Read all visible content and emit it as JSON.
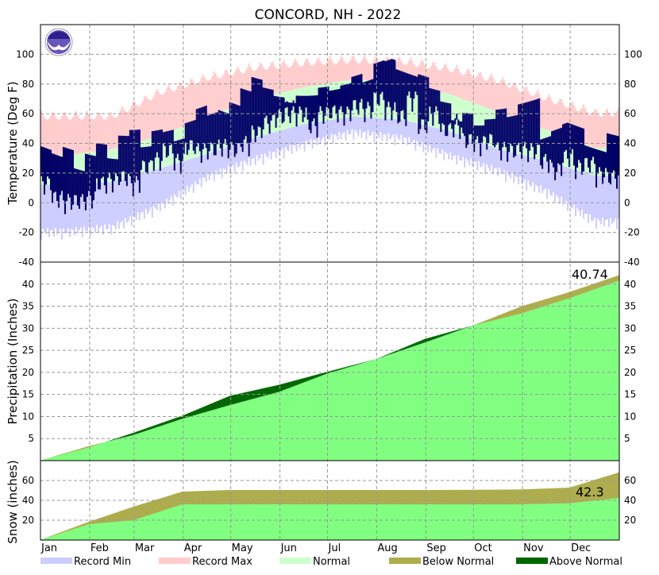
{
  "title": "CONCORD, NH - 2022",
  "months": [
    "Jan",
    "Feb",
    "Mar",
    "Apr",
    "May",
    "Jun",
    "Jul",
    "Aug",
    "Sep",
    "Oct",
    "Nov",
    "Dec"
  ],
  "legend": [
    {
      "label": "Record Min",
      "color": "#ccccff"
    },
    {
      "label": "Record Max",
      "color": "#ffcccc"
    },
    {
      "label": "Normal",
      "color": "#ccffcc"
    },
    {
      "label": "Below Normal",
      "color": "#adad4d"
    },
    {
      "label": "Above Normal",
      "color": "#006600"
    }
  ],
  "colors": {
    "observed_temp": "#000066",
    "precip_fill": "#80ff80",
    "grid": "#999999",
    "logo": "noaa-logo"
  },
  "chart_data": [
    {
      "type": "bar",
      "panel": "temperature",
      "ylabel": "Temperature (Deg F)",
      "ylim": [
        -40,
        120
      ],
      "yticks": [
        -40,
        -20,
        0,
        20,
        40,
        60,
        80,
        100
      ],
      "grid": true,
      "monthly_normal_high": [
        32,
        36,
        45,
        58,
        70,
        78,
        83,
        81,
        73,
        61,
        49,
        37
      ],
      "monthly_normal_low": [
        12,
        14,
        23,
        33,
        44,
        53,
        58,
        56,
        48,
        36,
        28,
        18
      ],
      "monthly_record_max": [
        62,
        62,
        78,
        88,
        95,
        98,
        100,
        99,
        94,
        86,
        74,
        64
      ],
      "monthly_record_min": [
        -25,
        -22,
        -8,
        12,
        24,
        34,
        42,
        38,
        26,
        16,
        2,
        -18
      ],
      "weekly_observed_high": [
        38,
        36,
        43,
        31,
        43,
        52,
        43,
        59,
        63,
        51,
        61,
        59,
        51,
        61,
        68,
        61,
        63,
        71,
        83,
        93,
        88,
        84,
        81,
        86,
        86,
        91,
        88,
        90,
        94,
        88,
        98,
        97,
        91,
        91,
        93,
        86,
        79,
        68,
        74,
        66,
        70,
        76,
        70,
        77,
        77,
        49,
        52,
        54,
        54,
        43,
        43,
        56
      ],
      "weekly_observed_low": [
        4,
        -6,
        -8,
        -8,
        -6,
        4,
        6,
        8,
        4,
        15,
        20,
        26,
        19,
        29,
        26,
        27,
        29,
        27,
        31,
        38,
        45,
        49,
        51,
        51,
        43,
        51,
        52,
        51,
        56,
        54,
        61,
        54,
        49,
        61,
        43,
        51,
        40,
        42,
        33,
        31,
        33,
        27,
        26,
        27,
        26,
        19,
        13,
        22,
        15,
        17,
        10,
        8
      ]
    },
    {
      "type": "area",
      "panel": "precipitation",
      "ylabel": "Precipitation (Inches)",
      "ylim": [
        0,
        45
      ],
      "yticks": [
        5,
        10,
        15,
        20,
        25,
        30,
        35,
        40
      ],
      "grid": true,
      "annotation": "40.74",
      "month_end_actual_cumulative": [
        3.0,
        6.3,
        10.2,
        14.7,
        17.2,
        20.1,
        23.0,
        27.6,
        30.6,
        33.4,
        36.8,
        40.74
      ],
      "month_end_normal_cumulative": [
        3.3,
        5.8,
        9.5,
        12.6,
        15.6,
        19.7,
        23.0,
        26.8,
        30.6,
        35.0,
        38.2,
        42.0
      ]
    },
    {
      "type": "area",
      "panel": "snow",
      "ylabel": "Snow (inches)",
      "ylim": [
        0,
        80
      ],
      "yticks": [
        20,
        40,
        60
      ],
      "grid": true,
      "annotation": "42.3",
      "month_end_actual_cumulative": [
        16,
        20,
        36,
        36,
        36,
        36,
        36,
        36,
        36,
        36,
        37,
        42.3
      ],
      "month_end_normal_cumulative": [
        18.4,
        33.6,
        48.8,
        50.4,
        50.4,
        50.4,
        50.4,
        50.4,
        50.6,
        51,
        52.8,
        68
      ]
    }
  ]
}
